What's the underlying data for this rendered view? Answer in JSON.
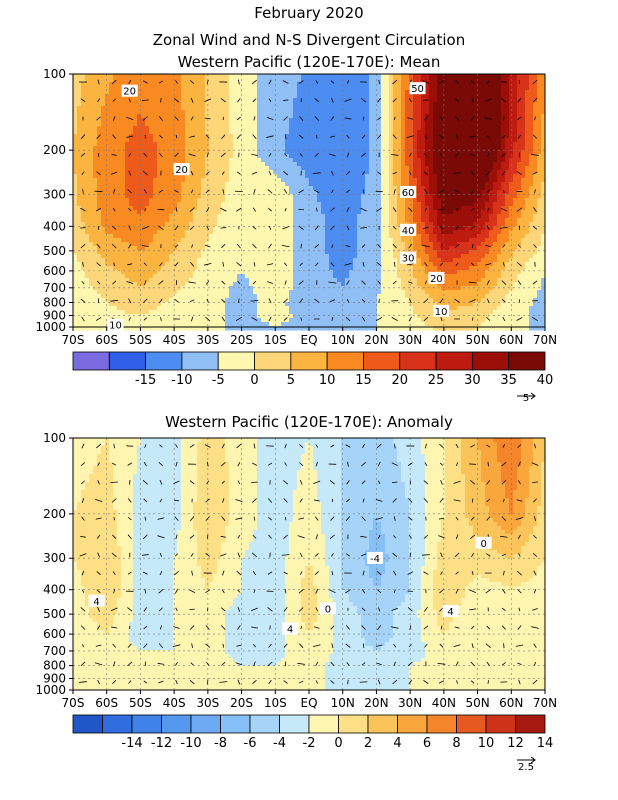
{
  "title_line1": "February 2020",
  "title_line2": "Zonal Wind and N-S Divergent Circulation",
  "chart_data": [
    {
      "type": "heatmap",
      "title": "Western Pacific (120E-170E): Mean",
      "x_tick_labels": [
        "70S",
        "60S",
        "50S",
        "40S",
        "30S",
        "20S",
        "10S",
        "EQ",
        "10N",
        "20N",
        "30N",
        "40N",
        "50N",
        "60N",
        "70N"
      ],
      "x": [
        -70,
        -60,
        -50,
        -40,
        -30,
        -20,
        -10,
        0,
        10,
        20,
        30,
        40,
        50,
        60,
        70
      ],
      "y_tick_labels": [
        "100",
        "200",
        "300",
        "400",
        "500",
        "600",
        "700",
        "800",
        "900",
        "1000"
      ],
      "y": [
        100,
        200,
        300,
        400,
        500,
        600,
        700,
        800,
        900,
        1000
      ],
      "y_scale": "log",
      "ylim": [
        1000,
        100
      ],
      "colorbar_bounds": [
        -20,
        -15,
        -10,
        -5,
        0,
        5,
        10,
        15,
        20,
        25,
        30,
        35,
        40,
        45
      ],
      "colorbar_labels": [
        "-15",
        "-10",
        "-5",
        "0",
        "5",
        "10",
        "15",
        "20",
        "25",
        "30",
        "35",
        "40"
      ],
      "colorbar_colors": [
        "#7b6be0",
        "#2f5fe6",
        "#4d8cf0",
        "#8fbff5",
        "#fdf7b0",
        "#fdd67a",
        "#fbb43f",
        "#f98a22",
        "#ee5a1a",
        "#d8321a",
        "#bd1a10",
        "#9b0f08",
        "#7a0a05"
      ],
      "contour_labels": [
        "20",
        "20",
        "50",
        "60",
        "40",
        "30",
        "20",
        "10",
        "10"
      ],
      "vector_ref_label": "5",
      "zonal_wind_values": [
        [
          8,
          14,
          18,
          16,
          9,
          2,
          -2,
          -6,
          -10,
          -4,
          22,
          44,
          52,
          34,
          16
        ],
        [
          10,
          18,
          22,
          18,
          10,
          3,
          -4,
          -8,
          -10,
          -4,
          24,
          50,
          54,
          32,
          12
        ],
        [
          9,
          18,
          22,
          17,
          8,
          2,
          4,
          -4,
          -8,
          -3,
          20,
          44,
          42,
          22,
          8
        ],
        [
          7,
          16,
          19,
          13,
          6,
          1,
          4,
          -3,
          -7,
          -2,
          16,
          38,
          34,
          16,
          5
        ],
        [
          5,
          12,
          15,
          10,
          4,
          0,
          4,
          -3,
          -7,
          -2,
          12,
          30,
          24,
          11,
          3
        ],
        [
          3,
          9,
          12,
          8,
          3,
          0,
          3,
          -3,
          -6,
          -2,
          9,
          22,
          18,
          7,
          0
        ],
        [
          2,
          7,
          10,
          6,
          2,
          -1,
          2,
          -2,
          -5,
          -1,
          7,
          16,
          14,
          5,
          -1
        ],
        [
          2,
          5,
          7,
          4,
          1,
          -1,
          1,
          -2,
          -4,
          0,
          5,
          12,
          10,
          3,
          -2
        ],
        [
          1,
          4,
          5,
          3,
          1,
          -1,
          1,
          -1,
          -3,
          0,
          4,
          9,
          7,
          2,
          -2
        ],
        [
          0,
          3,
          4,
          2,
          1,
          -1,
          0,
          -1,
          -2,
          0,
          3,
          6,
          5,
          1,
          -1
        ]
      ]
    },
    {
      "type": "heatmap",
      "title": "Western Pacific (120E-170E): Anomaly",
      "x_tick_labels": [
        "70S",
        "60S",
        "50S",
        "40S",
        "30S",
        "20S",
        "10S",
        "EQ",
        "10N",
        "20N",
        "30N",
        "40N",
        "50N",
        "60N",
        "70N"
      ],
      "x": [
        -70,
        -60,
        -50,
        -40,
        -30,
        -20,
        -10,
        0,
        10,
        20,
        30,
        40,
        50,
        60,
        70
      ],
      "y_tick_labels": [
        "100",
        "200",
        "300",
        "400",
        "500",
        "600",
        "700",
        "800",
        "900",
        "1000"
      ],
      "y": [
        100,
        200,
        300,
        400,
        500,
        600,
        700,
        800,
        900,
        1000
      ],
      "y_scale": "log",
      "ylim": [
        1000,
        100
      ],
      "colorbar_bounds": [
        -16,
        -14,
        -12,
        -10,
        -8,
        -6,
        -4,
        -2,
        0,
        2,
        4,
        6,
        8,
        10,
        12,
        14,
        16
      ],
      "colorbar_labels": [
        "-14",
        "-12",
        "-10",
        "-8",
        "-6",
        "-4",
        "-2",
        "0",
        "2",
        "4",
        "6",
        "8",
        "10",
        "12",
        "14"
      ],
      "colorbar_colors": [
        "#1f56c8",
        "#2f6de0",
        "#3f83ea",
        "#5598f0",
        "#6cabf4",
        "#86c0f6",
        "#a5d4f8",
        "#c6e9fa",
        "#fdf5b0",
        "#fddf86",
        "#fbc45a",
        "#f9a63c",
        "#f5852a",
        "#e65a20",
        "#cc3318",
        "#a51a10"
      ],
      "contour_labels": [
        "4",
        "4",
        "-4",
        "0",
        "4",
        "0"
      ],
      "vector_ref_label": "2.5",
      "zonal_wind_values": [
        [
          1,
          2,
          0,
          -1,
          3,
          1,
          -1,
          0,
          -2,
          -3,
          -1,
          2,
          6,
          10,
          4
        ],
        [
          2,
          3,
          -1,
          -1,
          4,
          1,
          -1,
          1,
          -2,
          -4,
          -2,
          2,
          5,
          8,
          3
        ],
        [
          2,
          4,
          -1,
          0,
          3,
          0,
          -1,
          2,
          -2,
          -5,
          -2,
          3,
          3,
          4,
          2
        ],
        [
          1,
          4,
          -1,
          0,
          2,
          0,
          -1,
          3,
          -2,
          -4,
          -2,
          4,
          1,
          2,
          1
        ],
        [
          1,
          3,
          -1,
          0,
          1,
          -1,
          -1,
          3,
          -1,
          -3,
          -1,
          3,
          0,
          1,
          0
        ],
        [
          1,
          2,
          -1,
          0,
          1,
          -1,
          -1,
          2,
          -1,
          -3,
          -1,
          2,
          0,
          0,
          0
        ],
        [
          0,
          1,
          0,
          0,
          1,
          -1,
          -1,
          2,
          -1,
          -2,
          -1,
          1,
          0,
          0,
          0
        ],
        [
          0,
          1,
          0,
          0,
          1,
          0,
          0,
          1,
          -1,
          -2,
          0,
          1,
          0,
          0,
          0
        ],
        [
          0,
          1,
          0,
          0,
          0,
          0,
          0,
          1,
          -1,
          -1,
          0,
          1,
          0,
          0,
          0
        ],
        [
          0,
          0,
          0,
          0,
          0,
          0,
          0,
          0,
          0,
          -1,
          0,
          0,
          0,
          0,
          0
        ]
      ]
    }
  ]
}
